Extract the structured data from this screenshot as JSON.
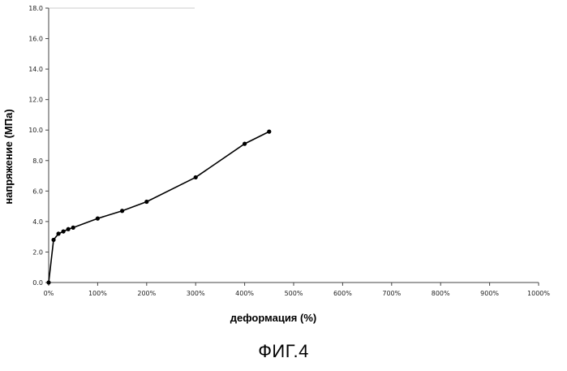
{
  "chart_data": {
    "type": "line",
    "xlabel": "деформация (%)",
    "ylabel": "напряжение (МПа)",
    "xlim": [
      0,
      10
    ],
    "ylim": [
      0,
      18
    ],
    "x_ticks": [
      0,
      1,
      2,
      3,
      4,
      5,
      6,
      7,
      8,
      9,
      10
    ],
    "x_tick_labels": [
      "0%",
      "100%",
      "200%",
      "300%",
      "400%",
      "500%",
      "600%",
      "700%",
      "800%",
      "900%",
      "1000%"
    ],
    "y_ticks": [
      0,
      2,
      4,
      6,
      8,
      10,
      12,
      14,
      16,
      18
    ],
    "y_tick_labels": [
      "0.0",
      "2.0",
      "4.0",
      "6.0",
      "8.0",
      "10.0",
      "12.0",
      "14.0",
      "16.0",
      "18.0"
    ],
    "grid": false,
    "series": [
      {
        "x": [
          0,
          0.1,
          0.2,
          0.3,
          0.4,
          0.5,
          1.0,
          1.5,
          2.0,
          3.0,
          4.0,
          4.5
        ],
        "y": [
          0,
          2.8,
          3.2,
          3.35,
          3.5,
          3.6,
          4.2,
          4.7,
          5.3,
          6.9,
          9.1,
          9.9
        ]
      }
    ]
  },
  "caption": "ФИГ.4",
  "colors": {
    "line": "#000000",
    "axis": "#444444"
  }
}
